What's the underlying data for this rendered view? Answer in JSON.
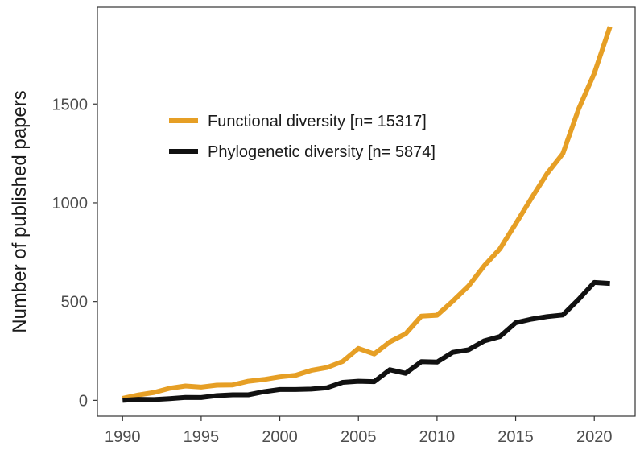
{
  "chart_data": {
    "type": "line",
    "title": "",
    "xlabel": "",
    "ylabel": "Number of published papers",
    "xlim": [
      1988.4,
      2022.6
    ],
    "ylim": [
      -80,
      1990
    ],
    "x_ticks": [
      1990,
      1995,
      2000,
      2005,
      2010,
      2015,
      2020
    ],
    "y_ticks": [
      0,
      500,
      1000,
      1500
    ],
    "grid": false,
    "legend_position": "upper-left",
    "x": [
      1990,
      1991,
      1992,
      1993,
      1994,
      1995,
      1996,
      1997,
      1998,
      1999,
      2000,
      2001,
      2002,
      2003,
      2004,
      2005,
      2006,
      2007,
      2008,
      2009,
      2010,
      2011,
      2012,
      2013,
      2014,
      2015,
      2016,
      2017,
      2018,
      2019,
      2020,
      2021
    ],
    "series": [
      {
        "name": "Functional diversity [n= 15317]",
        "color": "#e69f25",
        "values": [
          10,
          27,
          40,
          61,
          73,
          67,
          77,
          78,
          97,
          106,
          119,
          127,
          152,
          166,
          197,
          263,
          235,
          296,
          337,
          426,
          431,
          502,
          579,
          681,
          767,
          894,
          1023,
          1148,
          1249,
          1474,
          1655,
          1891
        ]
      },
      {
        "name": "Phylogenetic diversity [n= 5874]",
        "color": "#111111",
        "values": [
          0,
          5,
          4,
          9,
          15,
          14,
          24,
          28,
          28,
          44,
          55,
          55,
          57,
          64,
          91,
          97,
          95,
          155,
          137,
          196,
          194,
          243,
          256,
          301,
          323,
          393,
          411,
          424,
          432,
          511,
          597,
          592
        ]
      }
    ]
  }
}
